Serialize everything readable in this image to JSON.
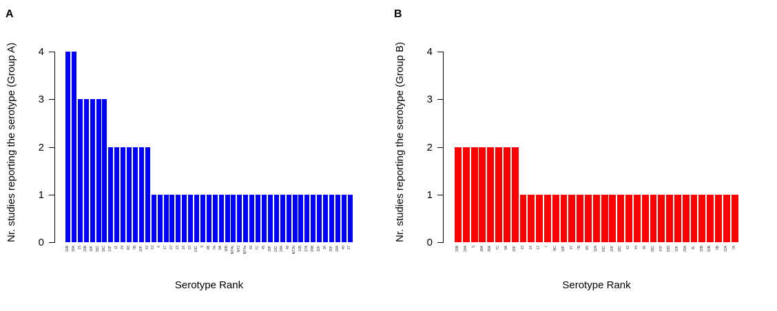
{
  "figure": {
    "background": "#ffffff",
    "text_color": "#000000"
  },
  "chart_data": [
    {
      "type": "bar",
      "panel_letter": "A",
      "bar_color": "#0000ff",
      "ylabel": "Nr. studies reporting the serotype (Group A)",
      "xlabel": "Serotype Rank",
      "ylim": [
        0,
        4
      ],
      "yticks": [
        0,
        1,
        2,
        3,
        4
      ],
      "grid": false,
      "legend": null,
      "categories": [
        "19B",
        "35A",
        "15",
        "33B",
        "18F",
        "35C",
        "19C",
        "12F",
        "11",
        "18",
        "6D",
        "7B",
        "10F",
        "42",
        "19",
        "6",
        "17",
        "22",
        "23",
        "16",
        "10",
        "23C",
        "9",
        "4B",
        "7A",
        "9A",
        "18B",
        "NT4b",
        "NT2",
        "NT4a",
        "39",
        "7C",
        "45",
        "28F",
        "33C",
        "24A",
        "48",
        "NT3b",
        "11B",
        "17A",
        "24B",
        "32F",
        "36",
        "25F",
        "28A",
        "40",
        "27"
      ],
      "values": [
        4,
        4,
        3,
        3,
        3,
        3,
        3,
        2,
        2,
        2,
        2,
        2,
        2,
        2,
        1,
        1,
        1,
        1,
        1,
        1,
        1,
        1,
        1,
        1,
        1,
        1,
        1,
        1,
        1,
        1,
        1,
        1,
        1,
        1,
        1,
        1,
        1,
        1,
        1,
        1,
        1,
        1,
        1,
        1,
        1,
        1,
        1
      ]
    },
    {
      "type": "bar",
      "panel_letter": "B",
      "bar_color": "#ff0000",
      "ylabel": "Nr. studies reporting the serotype (Group B)",
      "xlabel": "Serotype Rank",
      "ylim": [
        0,
        4
      ],
      "yticks": [
        0,
        1,
        2,
        3,
        4
      ],
      "grid": false,
      "legend": null,
      "categories": [
        "18B",
        "24A",
        "5",
        "18A",
        "35A",
        "7C",
        "9A",
        "25F",
        "22",
        "16",
        "17",
        "7",
        "NC",
        "18F",
        "37",
        "7B",
        "6D",
        "12A",
        "33C",
        "15F",
        "19C",
        "42",
        "44",
        "36",
        "35C",
        "47F",
        "33D",
        "10F",
        "25A",
        "9L",
        "33B",
        "10B",
        "5B",
        "22A",
        "7A"
      ],
      "values": [
        2,
        2,
        2,
        2,
        2,
        2,
        2,
        2,
        1,
        1,
        1,
        1,
        1,
        1,
        1,
        1,
        1,
        1,
        1,
        1,
        1,
        1,
        1,
        1,
        1,
        1,
        1,
        1,
        1,
        1,
        1,
        1,
        1,
        1,
        1
      ]
    }
  ]
}
